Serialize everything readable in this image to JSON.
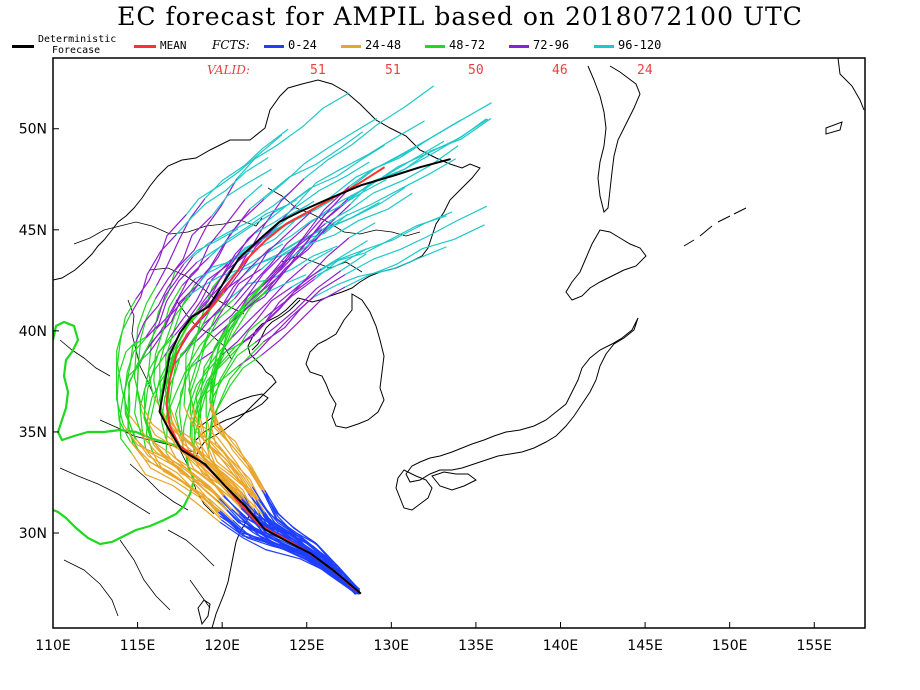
{
  "title": "EC forecast for AMPIL based on 2018072100 UTC",
  "legend": {
    "deterministic_line1": "Deterministic",
    "deterministic_line2": "Forecase",
    "mean": "MEAN",
    "fcts_label": "FCTS:",
    "valid_label": "VALID:",
    "periods": [
      {
        "label": "0-24",
        "color": "#1f3fff",
        "valid_count": "51"
      },
      {
        "label": "24-48",
        "color": "#e8a52a",
        "valid_count": "51"
      },
      {
        "label": "48-72",
        "color": "#1fd81f",
        "valid_count": "50"
      },
      {
        "label": "72-96",
        "color": "#8f1fd0",
        "valid_count": "46"
      },
      {
        "label": "96-120",
        "color": "#1fc8c8",
        "valid_count": "24"
      }
    ],
    "deterministic_color": "#000000",
    "mean_color": "#ff3030"
  },
  "axes": {
    "x_ticks": [
      "110E",
      "115E",
      "120E",
      "125E",
      "130E",
      "135E",
      "140E",
      "145E",
      "150E",
      "155E"
    ],
    "y_ticks": [
      "30N",
      "35N",
      "40N",
      "45N",
      "50N"
    ],
    "lon_range": [
      110,
      158
    ],
    "lat_range": [
      25.3,
      53.5
    ]
  },
  "tracks": {
    "deterministic": [
      [
        128.2,
        27.0
      ],
      [
        126.5,
        28.2
      ],
      [
        125.2,
        29.0
      ],
      [
        123.8,
        29.6
      ],
      [
        122.5,
        30.2
      ],
      [
        121.4,
        31.3
      ],
      [
        120.2,
        32.3
      ],
      [
        119.0,
        33.4
      ],
      [
        117.6,
        34.1
      ],
      [
        116.8,
        35.2
      ],
      [
        116.3,
        36.0
      ],
      [
        116.6,
        37.4
      ],
      [
        116.9,
        38.8
      ],
      [
        117.5,
        39.9
      ],
      [
        118.2,
        40.7
      ],
      [
        119.2,
        41.2
      ],
      [
        120.1,
        42.4
      ],
      [
        121.0,
        43.6
      ],
      [
        122.3,
        44.6
      ],
      [
        123.4,
        45.4
      ],
      [
        124.6,
        45.9
      ],
      [
        126.2,
        46.5
      ],
      [
        128.2,
        47.2
      ],
      [
        130.2,
        47.7
      ],
      [
        131.7,
        48.1
      ],
      [
        133.5,
        48.5
      ]
    ],
    "mean": [
      [
        128.0,
        27.1
      ],
      [
        126.5,
        28.2
      ],
      [
        125.0,
        29.1
      ],
      [
        123.5,
        29.8
      ],
      [
        122.2,
        30.4
      ],
      [
        121.1,
        31.4
      ],
      [
        120.0,
        32.5
      ],
      [
        118.8,
        33.5
      ],
      [
        117.5,
        34.3
      ],
      [
        116.9,
        35.3
      ],
      [
        116.7,
        36.4
      ],
      [
        116.9,
        37.6
      ],
      [
        117.3,
        38.8
      ],
      [
        117.9,
        39.8
      ],
      [
        118.7,
        40.6
      ],
      [
        119.6,
        41.4
      ],
      [
        120.5,
        42.5
      ],
      [
        121.4,
        43.5
      ],
      [
        122.6,
        44.5
      ],
      [
        123.8,
        45.3
      ],
      [
        125.1,
        45.9
      ],
      [
        126.6,
        46.6
      ],
      [
        128.1,
        47.3
      ],
      [
        129.6,
        48.1
      ]
    ]
  }
}
